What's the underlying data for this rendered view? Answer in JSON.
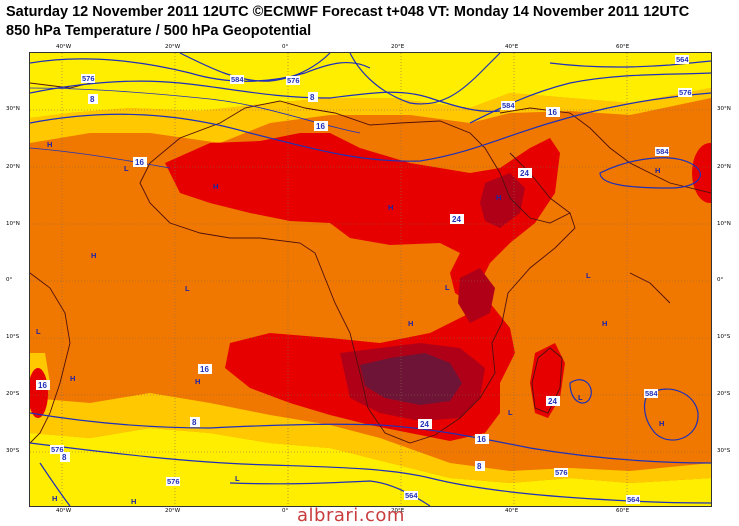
{
  "header": {
    "line1": "Saturday 12 November 2011 12UTC ©ECMWF Forecast t+048 VT: Monday 14 November 2011 12UTC",
    "line2": "850 hPa Temperature / 500 hPa Geopotential"
  },
  "axes": {
    "lon_labels": [
      "40°W",
      "20°W",
      "0°",
      "20°E",
      "40°E",
      "60°E"
    ],
    "lat_labels": [
      "30°N",
      "20°N",
      "10°N",
      "0°",
      "10°S",
      "20°S",
      "30°S"
    ]
  },
  "contours": {
    "geopotential": [
      "576",
      "584",
      "576",
      "564",
      "576",
      "584",
      "576",
      "564",
      "576",
      "576",
      "584",
      "584",
      "564"
    ],
    "temperature": [
      "8",
      "8",
      "16",
      "16",
      "16",
      "24",
      "24",
      "24",
      "16",
      "16",
      "8",
      "8",
      "8",
      "24",
      "16"
    ]
  },
  "pressure_centers": [
    "H",
    "H",
    "H",
    "H",
    "L",
    "H",
    "H",
    "L",
    "H",
    "L",
    "H",
    "L",
    "L",
    "H",
    "H",
    "L",
    "L",
    "H",
    "H",
    "L",
    "H"
  ],
  "colors": {
    "yellow": "#ffee00",
    "light_orange": "#ffc800",
    "orange": "#f07800",
    "red": "#e60000",
    "dark_red": "#b00018",
    "maroon": "#6e1436",
    "geopotential_line": "#2030b8",
    "coastline": "#501010"
  },
  "watermark": "albrari.com"
}
